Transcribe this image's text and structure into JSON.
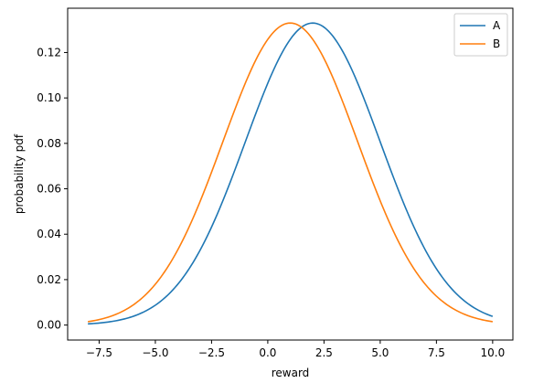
{
  "chart_data": {
    "type": "line",
    "title": "",
    "xlabel": "reward",
    "ylabel": "probability pdf",
    "xlim": [
      -8.9,
      10.9
    ],
    "ylim": [
      -0.0066,
      0.1395
    ],
    "xticks": [
      -7.5,
      -5.0,
      -2.5,
      0.0,
      2.5,
      5.0,
      7.5,
      10.0
    ],
    "xtick_labels": [
      "−7.5",
      "−5.0",
      "−2.5",
      "0.0",
      "2.5",
      "5.0",
      "7.5",
      "10.0"
    ],
    "yticks": [
      0.0,
      0.02,
      0.04,
      0.06,
      0.08,
      0.1,
      0.12
    ],
    "ytick_labels": [
      "0.00",
      "0.02",
      "0.04",
      "0.06",
      "0.08",
      "0.10",
      "0.12"
    ],
    "grid": false,
    "legend_position": "top-right",
    "x_range": [
      -8,
      10
    ],
    "series": [
      {
        "name": "A",
        "color": "#1f77b4",
        "distribution": "normal",
        "mean": 2.0,
        "std": 3.0
      },
      {
        "name": "B",
        "color": "#ff7f0e",
        "distribution": "normal",
        "mean": 1.0,
        "std": 3.0
      }
    ]
  }
}
